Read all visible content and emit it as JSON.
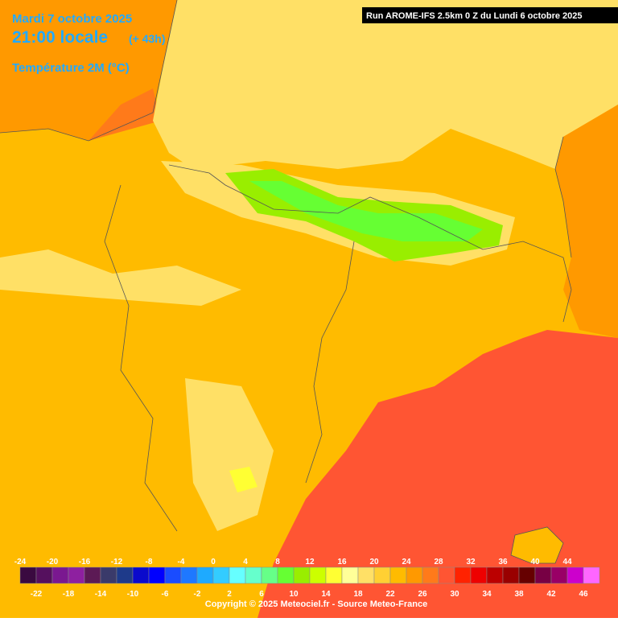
{
  "header": {
    "date": "Mardi 7 octobre 2025",
    "time": "21:00 locale",
    "offset": "(+ 43h)",
    "field": "Température 2M (°C)",
    "run": "Run AROME-IFS 2.5km 0 Z du Lundi 6 octobre 2025"
  },
  "legend": [
    {
      "value": -24,
      "color": "#3a0a40"
    },
    {
      "value": -22,
      "color": "#55105e"
    },
    {
      "value": -20,
      "color": "#7a1890"
    },
    {
      "value": -18,
      "color": "#8e20a0"
    },
    {
      "value": -16,
      "color": "#5c1a55"
    },
    {
      "value": -14,
      "color": "#3a3a6a"
    },
    {
      "value": -12,
      "color": "#1e3a8a"
    },
    {
      "value": -10,
      "color": "#0a0acc"
    },
    {
      "value": -8,
      "color": "#0000ff"
    },
    {
      "value": -6,
      "color": "#1a4cff"
    },
    {
      "value": -4,
      "color": "#1e78ff"
    },
    {
      "value": -2,
      "color": "#1eaaff"
    },
    {
      "value": 0,
      "color": "#33ccff"
    },
    {
      "value": 2,
      "color": "#66ffff"
    },
    {
      "value": 4,
      "color": "#66ffcc"
    },
    {
      "value": 6,
      "color": "#66ff88"
    },
    {
      "value": 8,
      "color": "#66ff33"
    },
    {
      "value": 10,
      "color": "#99ee00"
    },
    {
      "value": 12,
      "color": "#ccff00"
    },
    {
      "value": 14,
      "color": "#ffff33"
    },
    {
      "value": 16,
      "color": "#ffff99"
    },
    {
      "value": 18,
      "color": "#ffe066"
    },
    {
      "value": 20,
      "color": "#ffd033"
    },
    {
      "value": 22,
      "color": "#ffbb00"
    },
    {
      "value": 24,
      "color": "#ff9900"
    },
    {
      "value": 26,
      "color": "#ff7a1a"
    },
    {
      "value": 28,
      "color": "#ff5533"
    },
    {
      "value": 30,
      "color": "#ff2200"
    },
    {
      "value": 32,
      "color": "#ee0000"
    },
    {
      "value": 34,
      "color": "#bb0000"
    },
    {
      "value": 36,
      "color": "#990000"
    },
    {
      "value": 38,
      "color": "#660000"
    },
    {
      "value": 40,
      "color": "#770044"
    },
    {
      "value": 42,
      "color": "#990066"
    },
    {
      "value": 44,
      "color": "#cc00cc"
    },
    {
      "value": 46,
      "color": "#ff66ff"
    }
  ],
  "footer": {
    "copyright": "Copyright © 2025 Meteociel.fr - Source Meteo-France"
  }
}
